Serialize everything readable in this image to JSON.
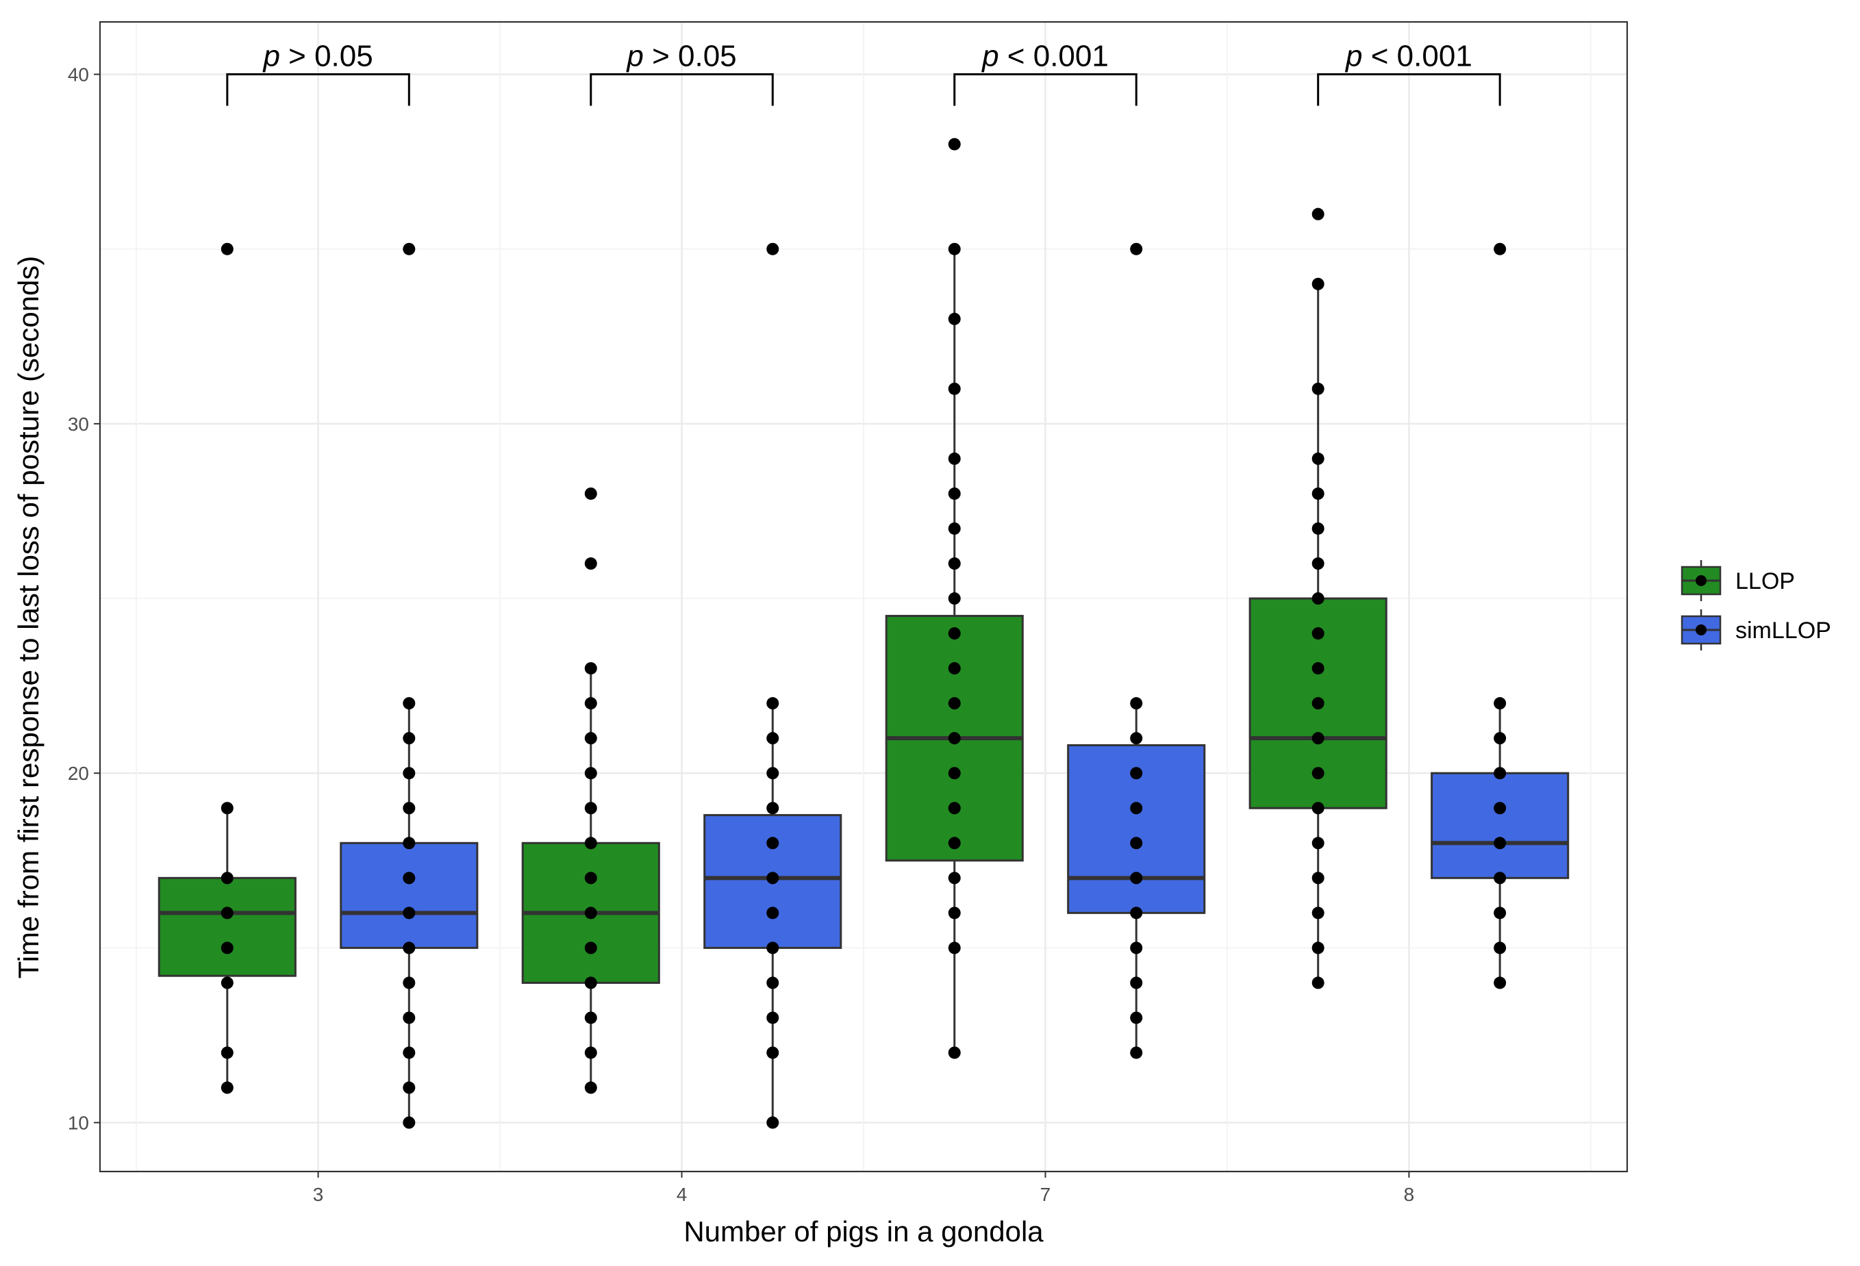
{
  "chart_data": {
    "type": "box",
    "title": "",
    "xlabel": "Number of pigs in a gondola",
    "ylabel": "Time from first response to last loss of posture (seconds)",
    "categories": [
      "3",
      "4",
      "7",
      "8"
    ],
    "ylim": [
      8.6,
      41.5
    ],
    "yticks": [
      10,
      20,
      30,
      40
    ],
    "grid": true,
    "legend_position": "right",
    "series": [
      {
        "name": "LLOP",
        "color": "#228B22",
        "boxes": [
          {
            "category": "3",
            "q1": 14.2,
            "median": 16,
            "q3": 17,
            "whisker_low": 11,
            "whisker_high": 19,
            "points": [
              35,
              19,
              17,
              16,
              15,
              14,
              12,
              11
            ]
          },
          {
            "category": "4",
            "q1": 14,
            "median": 16,
            "q3": 18,
            "whisker_low": 11,
            "whisker_high": 23,
            "points": [
              28,
              26,
              23,
              22,
              21,
              20,
              19,
              18,
              17,
              16,
              15,
              14,
              13,
              12,
              11
            ]
          },
          {
            "category": "7",
            "q1": 17.5,
            "median": 21,
            "q3": 24.5,
            "whisker_low": 12,
            "whisker_high": 35,
            "points": [
              38,
              35,
              33,
              31,
              29,
              28,
              27,
              26,
              25,
              24,
              23,
              22,
              21,
              20,
              19,
              18,
              17,
              16,
              15,
              12
            ]
          },
          {
            "category": "8",
            "q1": 19,
            "median": 21,
            "q3": 25,
            "whisker_low": 14,
            "whisker_high": 34,
            "points": [
              36,
              34,
              31,
              29,
              28,
              27,
              26,
              25,
              24,
              23,
              22,
              21,
              20,
              19,
              18,
              17,
              16,
              15,
              14
            ]
          }
        ]
      },
      {
        "name": "simLLOP",
        "color": "#4169E1",
        "boxes": [
          {
            "category": "3",
            "q1": 15,
            "median": 16,
            "q3": 18,
            "whisker_low": 10,
            "whisker_high": 22,
            "points": [
              35,
              22,
              21,
              20,
              19,
              18,
              17,
              16,
              15,
              14,
              13,
              12,
              11,
              10
            ]
          },
          {
            "category": "4",
            "q1": 15,
            "median": 17,
            "q3": 18.8,
            "whisker_low": 10,
            "whisker_high": 22,
            "points": [
              35,
              22,
              21,
              20,
              19,
              18,
              17,
              16,
              15,
              14,
              13,
              12,
              10
            ]
          },
          {
            "category": "7",
            "q1": 16,
            "median": 17,
            "q3": 20.8,
            "whisker_low": 12,
            "whisker_high": 22,
            "points": [
              35,
              22,
              21,
              20,
              19,
              18,
              17,
              16,
              15,
              14,
              13,
              12
            ]
          },
          {
            "category": "8",
            "q1": 17,
            "median": 18,
            "q3": 20,
            "whisker_low": 14,
            "whisker_high": 22,
            "points": [
              35,
              22,
              21,
              20,
              19,
              18,
              17,
              16,
              15,
              14
            ]
          }
        ]
      }
    ],
    "annotations": [
      {
        "category": "3",
        "italic": "p",
        "text": " > 0.05"
      },
      {
        "category": "4",
        "italic": "p",
        "text": " > 0.05"
      },
      {
        "category": "7",
        "italic": "p",
        "text": " < 0.001"
      },
      {
        "category": "8",
        "italic": "p",
        "text": " < 0.001"
      }
    ],
    "annotation_bracket_y": 40,
    "annotation_bracket_drop": 39.1
  }
}
